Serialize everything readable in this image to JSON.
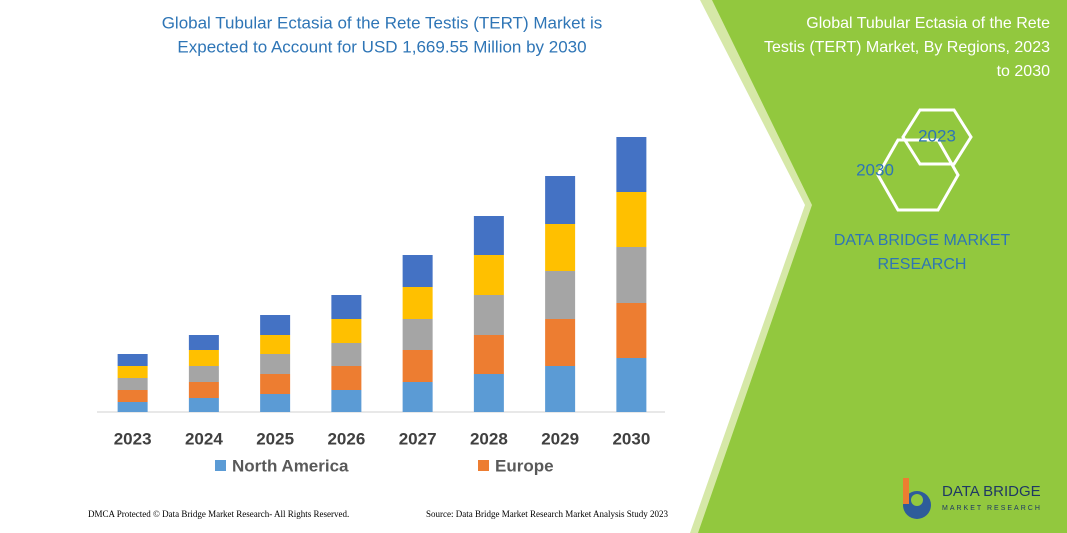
{
  "chart_data": {
    "type": "stacked-bar",
    "title": [
      "Global Tubular Ectasia of the Rete Testis (TERT) Market is",
      "Expected to Account for USD 1,669.55 Million by 2030"
    ],
    "categories": [
      "2023",
      "2024",
      "2025",
      "2026",
      "2027",
      "2028",
      "2029",
      "2030"
    ],
    "series": [
      {
        "name": "North America",
        "color": "#5b9bd5",
        "values": [
          10,
          14,
          18,
          22,
          30,
          38,
          46,
          54
        ]
      },
      {
        "name": "Europe",
        "color": "#ed7d31",
        "values": [
          12,
          16,
          20,
          24,
          32,
          39,
          47,
          55
        ]
      },
      {
        "color": "#a5a5a5",
        "values": [
          12,
          16,
          20,
          23,
          31,
          40,
          48,
          56
        ]
      },
      {
        "color": "#ffc000",
        "values": [
          12,
          16,
          19,
          24,
          32,
          40,
          47,
          55
        ]
      },
      {
        "color": "#4472c4",
        "values": [
          12,
          15,
          20,
          24,
          32,
          39,
          48,
          55
        ]
      }
    ]
  },
  "side_panel": {
    "title": [
      "Global Tubular Ectasia of the Rete",
      "Testis (TERT) Market, By Regions, 2023",
      "to 2030"
    ],
    "hexagons": [
      "2023",
      "2030"
    ],
    "brand": [
      "DATA BRIDGE MARKET",
      "RESEARCH"
    ]
  },
  "footer": {
    "left": "DMCA Protected © Data Bridge Market Research-  All Rights Reserved.",
    "right": "Source: Data Bridge Market Research  Market Analysis Study 2023"
  },
  "logo": {
    "name": "DATA BRIDGE",
    "tagline": "MARKET RESEARCH"
  }
}
